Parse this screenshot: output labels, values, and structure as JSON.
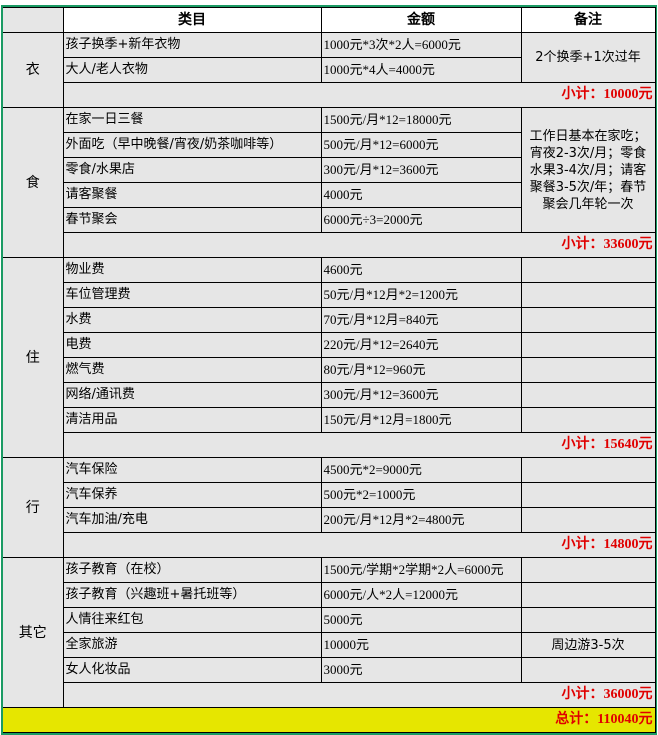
{
  "header": {
    "category": "类目",
    "amount": "金额",
    "note": "备注"
  },
  "groups": [
    {
      "name": "衣",
      "items": [
        {
          "item": "孩子换季+新年衣物",
          "amount": "1000元*3次*2人=6000元"
        },
        {
          "item": "大人/老人衣物",
          "amount": "1000元*4人=4000元"
        }
      ],
      "note": "2个换季+1次过年",
      "subtotal": "小计：10000元"
    },
    {
      "name": "食",
      "items": [
        {
          "item": "在家一日三餐",
          "amount": "1500元/月*12=18000元"
        },
        {
          "item": "外面吃（早中晚餐/宵夜/奶茶咖啡等）",
          "amount": "500元/月*12=6000元"
        },
        {
          "item": "零食/水果店",
          "amount": "300元/月*12=3600元"
        },
        {
          "item": "请客聚餐",
          "amount": "4000元"
        },
        {
          "item": "春节聚会",
          "amount": "6000元÷3=2000元"
        }
      ],
      "note": "工作日基本在家吃；宵夜2-3次/月；零食水果3-4次/月；请客聚餐3-5次/年；春节聚会几年轮一次",
      "subtotal": "小计：33600元"
    },
    {
      "name": "住",
      "items": [
        {
          "item": "物业费",
          "amount": "4600元"
        },
        {
          "item": "车位管理费",
          "amount": "50元/月*12月*2=1200元"
        },
        {
          "item": "水费",
          "amount": "70元/月*12月=840元"
        },
        {
          "item": "电费",
          "amount": "220元/月*12=2640元"
        },
        {
          "item": "燃气费",
          "amount": "80元/月*12=960元"
        },
        {
          "item": "网络/通讯费",
          "amount": "300元/月*12=3600元"
        },
        {
          "item": "清洁用品",
          "amount": "150元/月*12月=1800元"
        }
      ],
      "subtotal": "小计：15640元"
    },
    {
      "name": "行",
      "items": [
        {
          "item": "汽车保险",
          "amount": "4500元*2=9000元"
        },
        {
          "item": "汽车保养",
          "amount": "500元*2=1000元"
        },
        {
          "item": "汽车加油/充电",
          "amount": "200元/月*12月*2=4800元"
        }
      ],
      "subtotal": "小计：14800元"
    },
    {
      "name": "其它",
      "items": [
        {
          "item": "孩子教育（在校）",
          "amount": "1500元/学期*2学期*2人=6000元"
        },
        {
          "item": "孩子教育（兴趣班+暑托班等）",
          "amount": "6000元/人*2人=12000元"
        },
        {
          "item": "人情往来红包",
          "amount": "5000元"
        },
        {
          "item": "全家旅游",
          "amount": "10000元",
          "note": "周边游3-5次"
        },
        {
          "item": "女人化妆品",
          "amount": "3000元"
        }
      ],
      "subtotal": "小计：36000元"
    }
  ],
  "total": "总计：110040元",
  "colors": {
    "frame": "#1a9a63",
    "cell": "#e6e6e6",
    "subtotal_text": "#e00000",
    "total_bg": "#e6e600"
  }
}
